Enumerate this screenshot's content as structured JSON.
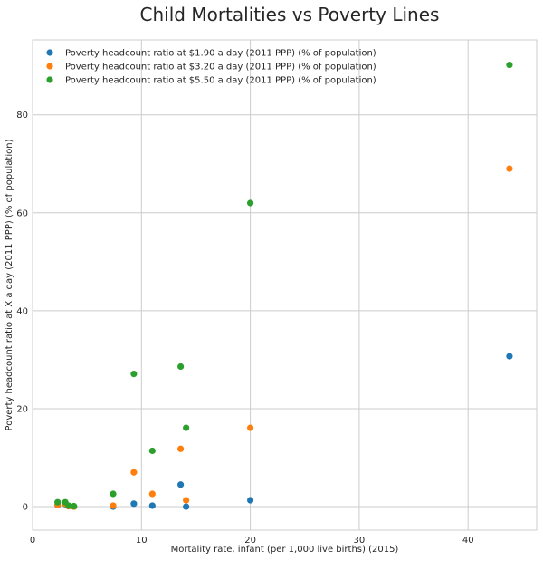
{
  "chart_data": {
    "type": "scatter",
    "title": "Child Mortalities vs Poverty Lines",
    "xlabel": "Mortality rate, infant (per 1,000 live births) (2015)",
    "ylabel": "Poverty headcount ratio at X a day (2011 PPP) (% of population)",
    "xlim": [
      0,
      46.3
    ],
    "ylim": [
      -4.8,
      95.3
    ],
    "xticks": [
      0,
      10,
      20,
      30,
      40
    ],
    "yticks": [
      0,
      20,
      40,
      60,
      80
    ],
    "grid": true,
    "legend_position": "top-left",
    "x": [
      2.3,
      3.0,
      3.3,
      3.8,
      7.4,
      9.3,
      11.0,
      13.6,
      14.1,
      20.0,
      43.8
    ],
    "series": [
      {
        "name": "Poverty headcount ratio at $1.90 a day (2011 PPP) (% of population)",
        "color": "#1f77b4",
        "values": [
          0.3,
          0.5,
          0.1,
          0.0,
          0.0,
          0.6,
          0.2,
          4.5,
          0.0,
          1.3,
          30.7
        ]
      },
      {
        "name": "Poverty headcount ratio at $3.20 a day (2011 PPP) (% of population)",
        "color": "#ff7f0e",
        "values": [
          0.4,
          0.6,
          0.1,
          0.0,
          0.2,
          7.0,
          2.6,
          11.8,
          1.3,
          16.1,
          69.0
        ]
      },
      {
        "name": "Poverty headcount ratio at $5.50 a day (2011 PPP) (% of population)",
        "color": "#2ca02c",
        "values": [
          0.9,
          0.9,
          0.2,
          0.1,
          2.6,
          27.1,
          11.4,
          28.6,
          16.1,
          62.0,
          90.2
        ]
      }
    ]
  }
}
